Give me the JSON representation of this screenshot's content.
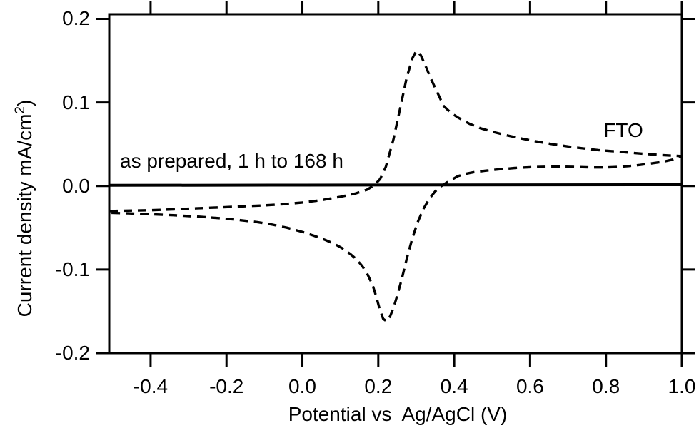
{
  "figure": {
    "background_color": "#ffffff",
    "ink_color": "#000000"
  },
  "chart_data": {
    "type": "line",
    "title": "",
    "xlabel": "Potential vs  Ag/AgCl (V)",
    "ylabel_main": "Current density mA/cm",
    "ylabel_sup": "2",
    "ylabel_suffix": ")",
    "xlim": [
      -0.509,
      1.0
    ],
    "ylim": [
      -0.2,
      0.2055
    ],
    "grid": false,
    "legend_position": "none (curves labeled inline)",
    "x_ticks": [
      {
        "v": -0.4,
        "label": "-0.4"
      },
      {
        "v": -0.2,
        "label": "-0.2"
      },
      {
        "v": 0.0,
        "label": "0.0"
      },
      {
        "v": 0.2,
        "label": "0.2"
      },
      {
        "v": 0.4,
        "label": "0.4"
      },
      {
        "v": 0.6,
        "label": "0.6"
      },
      {
        "v": 0.8,
        "label": "0.8"
      },
      {
        "v": 1.0,
        "label": "1.0"
      }
    ],
    "y_ticks": [
      {
        "v": 0.2,
        "label": "0.2"
      },
      {
        "v": 0.1,
        "label": "0.1"
      },
      {
        "v": 0.0,
        "label": "0.0"
      },
      {
        "v": -0.1,
        "label": "-0.1"
      },
      {
        "v": -0.2,
        "label": "-0.2"
      }
    ],
    "annotations": {
      "series_note": {
        "text": "as prepared, 1 h to 168 h"
      },
      "curve_label": {
        "text": "FTO"
      }
    },
    "series": [
      {
        "name": "FTO",
        "line_style": "dashed",
        "color": "#000000",
        "points": [
          [
            -0.509,
            -0.03
          ],
          [
            -0.46,
            -0.0295
          ],
          [
            -0.4,
            -0.029
          ],
          [
            -0.34,
            -0.028
          ],
          [
            -0.28,
            -0.0268
          ],
          [
            -0.22,
            -0.0257
          ],
          [
            -0.16,
            -0.0245
          ],
          [
            -0.1,
            -0.0232
          ],
          [
            -0.05,
            -0.0218
          ],
          [
            0.0,
            -0.0198
          ],
          [
            0.05,
            -0.017
          ],
          [
            0.1,
            -0.013
          ],
          [
            0.14,
            -0.009
          ],
          [
            0.17,
            -0.0045
          ],
          [
            0.19,
            0.001
          ],
          [
            0.205,
            0.0085
          ],
          [
            0.22,
            0.023
          ],
          [
            0.24,
            0.056
          ],
          [
            0.26,
            0.098
          ],
          [
            0.275,
            0.13
          ],
          [
            0.29,
            0.153
          ],
          [
            0.3,
            0.1615
          ],
          [
            0.312,
            0.1565
          ],
          [
            0.325,
            0.143
          ],
          [
            0.34,
            0.127
          ],
          [
            0.355,
            0.1125
          ],
          [
            0.372,
            0.096
          ],
          [
            0.39,
            0.088
          ],
          [
            0.41,
            0.082
          ],
          [
            0.44,
            0.0745
          ],
          [
            0.47,
            0.069
          ],
          [
            0.5,
            0.065
          ],
          [
            0.54,
            0.0605
          ],
          [
            0.58,
            0.0565
          ],
          [
            0.62,
            0.053
          ],
          [
            0.66,
            0.05
          ],
          [
            0.7,
            0.0473
          ],
          [
            0.74,
            0.045
          ],
          [
            0.78,
            0.043
          ],
          [
            0.82,
            0.0415
          ],
          [
            0.86,
            0.04
          ],
          [
            0.9,
            0.0385
          ],
          [
            0.94,
            0.0372
          ],
          [
            0.97,
            0.0364
          ],
          [
            1.0,
            0.0358
          ],
          [
            0.975,
            0.0315
          ],
          [
            0.95,
            0.029
          ],
          [
            0.92,
            0.027
          ],
          [
            0.89,
            0.0252
          ],
          [
            0.86,
            0.0238
          ],
          [
            0.83,
            0.0228
          ],
          [
            0.8,
            0.0222
          ],
          [
            0.76,
            0.0222
          ],
          [
            0.72,
            0.0228
          ],
          [
            0.68,
            0.0232
          ],
          [
            0.64,
            0.023
          ],
          [
            0.6,
            0.0225
          ],
          [
            0.56,
            0.0215
          ],
          [
            0.52,
            0.02
          ],
          [
            0.48,
            0.0182
          ],
          [
            0.45,
            0.0163
          ],
          [
            0.43,
            0.0145
          ],
          [
            0.41,
            0.0118
          ],
          [
            0.395,
            0.008
          ],
          [
            0.38,
            0.004
          ],
          [
            0.365,
            -0.0005
          ],
          [
            0.35,
            -0.0065
          ],
          [
            0.335,
            -0.015
          ],
          [
            0.32,
            -0.0265
          ],
          [
            0.305,
            -0.042
          ],
          [
            0.29,
            -0.062
          ],
          [
            0.275,
            -0.087
          ],
          [
            0.262,
            -0.111
          ],
          [
            0.25,
            -0.131
          ],
          [
            0.24,
            -0.146
          ],
          [
            0.231,
            -0.156
          ],
          [
            0.222,
            -0.162
          ],
          [
            0.213,
            -0.159
          ],
          [
            0.204,
            -0.148
          ],
          [
            0.195,
            -0.133
          ],
          [
            0.185,
            -0.1185
          ],
          [
            0.172,
            -0.106
          ],
          [
            0.158,
            -0.096
          ],
          [
            0.142,
            -0.0875
          ],
          [
            0.125,
            -0.081
          ],
          [
            0.105,
            -0.0745
          ],
          [
            0.085,
            -0.0695
          ],
          [
            0.06,
            -0.0645
          ],
          [
            0.03,
            -0.0595
          ],
          [
            0.0,
            -0.055
          ],
          [
            -0.04,
            -0.05
          ],
          [
            -0.08,
            -0.0462
          ],
          [
            -0.12,
            -0.0432
          ],
          [
            -0.17,
            -0.0405
          ],
          [
            -0.22,
            -0.0385
          ],
          [
            -0.28,
            -0.0365
          ],
          [
            -0.34,
            -0.035
          ],
          [
            -0.4,
            -0.0338
          ],
          [
            -0.46,
            -0.0328
          ],
          [
            -0.509,
            -0.0322
          ]
        ]
      },
      {
        "name": "as prepared, 1 h to 168 h (overlapping flat curves)",
        "line_style": "solid",
        "color": "#000000",
        "points": [
          [
            -0.509,
            0.0008
          ],
          [
            0.0,
            0.001
          ],
          [
            1.0,
            0.0015
          ]
        ]
      }
    ]
  }
}
